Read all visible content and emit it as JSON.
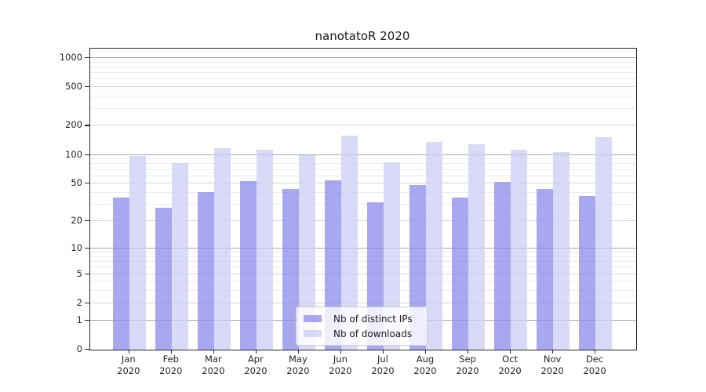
{
  "title": "nanotatoR 2020",
  "chart_data": {
    "type": "bar",
    "title": "nanotatoR 2020",
    "categories": [
      "Jan",
      "Feb",
      "Mar",
      "Apr",
      "May",
      "Jun",
      "Jul",
      "Aug",
      "Sep",
      "Oct",
      "Nov",
      "Dec"
    ],
    "year": "2020",
    "series": [
      {
        "name": "Nb of distinct IPs",
        "color": "rgba(139,139,236,0.75)",
        "values": [
          36,
          28,
          41,
          53,
          44,
          54,
          32,
          48,
          36,
          52,
          44,
          37
        ]
      },
      {
        "name": "Nb of downloads",
        "color": "rgba(204,204,246,0.75)",
        "values": [
          98,
          82,
          117,
          113,
          100,
          158,
          84,
          136,
          128,
          113,
          107,
          152
        ]
      }
    ],
    "yscale": "log10(1+x)",
    "yticks": [
      0,
      1,
      2,
      5,
      10,
      20,
      50,
      100,
      200,
      500,
      1000
    ],
    "ylim": [
      0,
      1250
    ],
    "grid": "horizontal",
    "legend_position": "inside-bottom-center"
  },
  "colors": {
    "bar_ips": "rgba(139,139,236,0.75)",
    "bar_downloads": "rgba(204,204,246,0.75)",
    "grid_major": "#a8a8a8",
    "grid_labeled": "#d6d6d6",
    "grid_minor": "#ececec",
    "spine": "#262626",
    "text": "#262626",
    "legend_border": "#cccccc"
  }
}
